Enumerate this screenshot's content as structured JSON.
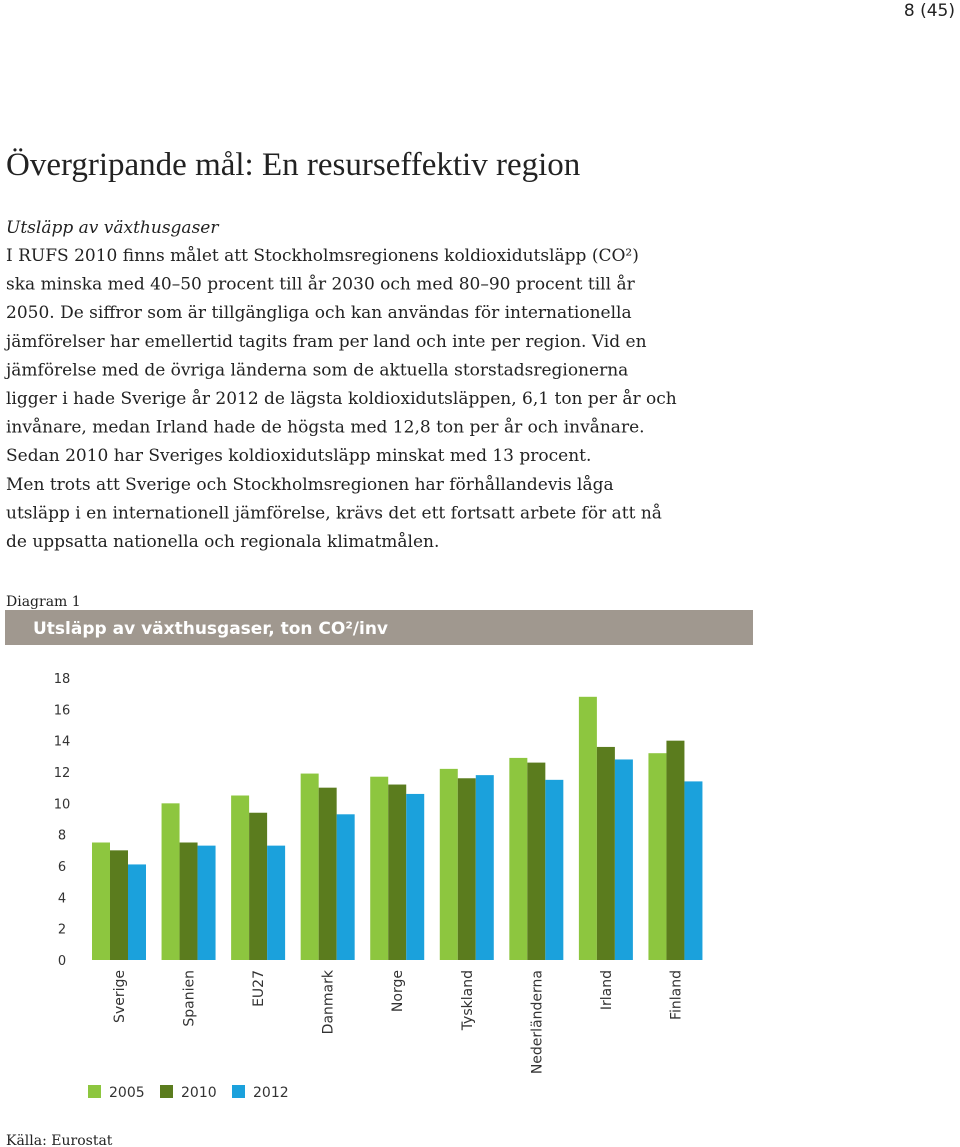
{
  "page_number": "8 (45)",
  "heading": "Övergripande mål: En resurseffektiv region",
  "subheading": "Utsläpp av växthusgaser",
  "paragraph_lines": [
    "I RUFS 2010 finns målet att Stockholmsregionens koldioxidutsläpp (CO²)",
    "ska minska med 40–50 procent till år 2030 och med 80–90 procent till år",
    "2050. De siffror som är tillgängliga och kan användas för internationella",
    "jämförelser har emellertid tagits fram per land och inte per region. Vid en",
    "jämförelse med de övriga länderna som de aktuella storstadsregionerna",
    "ligger i hade Sverige år 2012 de lägsta koldioxidutsläppen, 6,1 ton per år och",
    "invånare, medan Irland hade de högsta med 12,8 ton per år och invånare.",
    "Sedan 2010 har Sveriges koldioxidutsläpp minskat med 13 procent.",
    "Men trots att Sverige och Stockholmsregionen har förhållandevis låga",
    "utsläpp i en internationell jämförelse, krävs det ett fortsatt arbete för att nå",
    "de uppsatta nationella och regionala klimatmålen."
  ],
  "diagram_label": "Diagram 1",
  "source": "Källa: Eurostat",
  "chart_data": {
    "type": "bar",
    "title": "Utsläpp av växthusgaser, ton CO²/inv",
    "categories": [
      "Sverige",
      "Spanien",
      "EU27",
      "Danmark",
      "Norge",
      "Tyskland",
      "Nederländerna",
      "Irland",
      "Finland"
    ],
    "series": [
      {
        "name": "2005",
        "color": "#8dc63f",
        "values": [
          7.5,
          10.0,
          10.5,
          11.9,
          11.7,
          12.2,
          12.9,
          16.8,
          13.2
        ]
      },
      {
        "name": "2010",
        "color": "#5b7c1e",
        "values": [
          7.0,
          7.5,
          9.4,
          11.0,
          11.2,
          11.6,
          12.6,
          13.6,
          14.0
        ]
      },
      {
        "name": "2012",
        "color": "#1ba1dc",
        "values": [
          6.1,
          7.3,
          7.3,
          9.3,
          10.6,
          11.8,
          11.5,
          12.8,
          11.4
        ]
      }
    ],
    "ylim": [
      0,
      18
    ],
    "yticks": [
      0,
      2,
      4,
      6,
      8,
      10,
      12,
      14,
      16,
      18
    ],
    "legend": "bottom"
  }
}
